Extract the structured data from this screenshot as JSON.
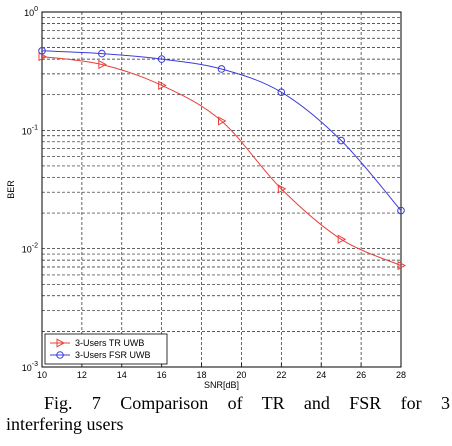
{
  "chart_data": {
    "type": "line",
    "xlabel": "SNR[dB]",
    "ylabel": "BER",
    "xlim": [
      10,
      28
    ],
    "ylim": [
      0.001,
      1
    ],
    "yscale": "log",
    "grid": true,
    "legend_position": "bottom-left",
    "xticks": [
      "10",
      "12",
      "14",
      "16",
      "18",
      "20",
      "22",
      "24",
      "26",
      "28"
    ],
    "yticks": [
      {
        "base": "10",
        "exp": "0",
        "value": 1
      },
      {
        "base": "10",
        "exp": "-1",
        "value": 0.1
      },
      {
        "base": "10",
        "exp": "-2",
        "value": 0.01
      },
      {
        "base": "10",
        "exp": "-3",
        "value": 0.001
      }
    ],
    "series": [
      {
        "name": "3-Users TR UWB",
        "color": "#e8403a",
        "marker": "triangle-right",
        "x": [
          10,
          13,
          16,
          19,
          22,
          25,
          28
        ],
        "y": [
          0.42,
          0.36,
          0.24,
          0.12,
          0.032,
          0.012,
          0.0072
        ]
      },
      {
        "name": "3-Users FSR UWB",
        "color": "#3d3dd6",
        "marker": "circle",
        "x": [
          10,
          13,
          16,
          19,
          22,
          25,
          28
        ],
        "y": [
          0.47,
          0.445,
          0.4,
          0.33,
          0.21,
          0.082,
          0.021
        ]
      }
    ]
  },
  "caption": {
    "line1": "Fig. 7 Comparison of TR and FSR for 3",
    "line2": "interfering users"
  }
}
